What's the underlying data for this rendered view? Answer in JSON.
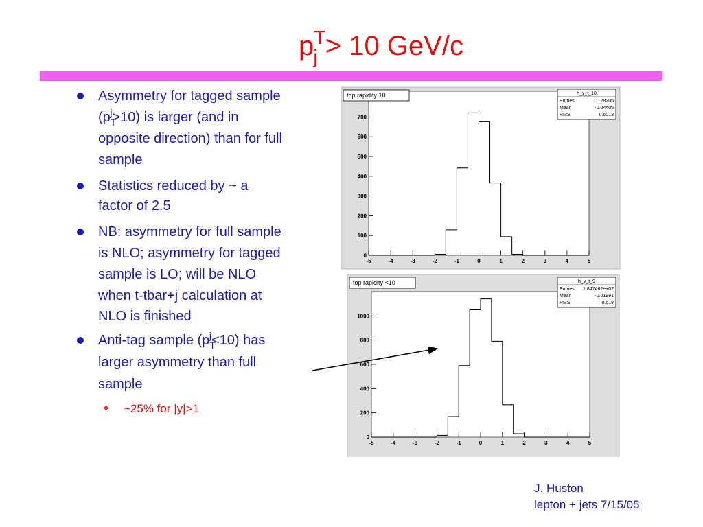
{
  "title": [
    {
      "text": "p"
    },
    {
      "text": "T",
      "script": "sup"
    },
    {
      "text": "j",
      "script": "sub"
    },
    {
      "text": " > 10 GeV/c"
    }
  ],
  "bullets": [
    {
      "lines": [
        [
          {
            "text": "Asymmetry for tagged sample"
          }
        ],
        [
          {
            "text": "(p"
          },
          {
            "text": "T",
            "script": "sub"
          },
          {
            "text": "j",
            "script": "sup"
          },
          {
            "text": ">10) is  larger (and in"
          }
        ],
        [
          {
            "text": "opposite direction) than for full"
          }
        ],
        [
          {
            "text": "sample"
          }
        ]
      ]
    },
    {
      "lines": [
        [
          {
            "text": "Statistics  reduced by ~ a"
          }
        ],
        [
          {
            "text": "factor of 2.5"
          }
        ]
      ]
    },
    {
      "lines": [
        [
          {
            "text": "NB: asymmetry for full sample"
          }
        ],
        [
          {
            "text": "is NLO; asymmetry for tagged"
          }
        ],
        [
          {
            "text": "sample is LO; will be NLO"
          }
        ],
        [
          {
            "text": "when t-tbar+j calculation at"
          }
        ],
        [
          {
            "text": "NLO is finished"
          }
        ]
      ]
    },
    {
      "lines": [
        [
          {
            "text": "Anti-tag sample (p"
          },
          {
            "text": "T",
            "script": "sub"
          },
          {
            "text": "j",
            "script": "sup"
          },
          {
            "text": "<10) has"
          }
        ],
        [
          {
            "text": "larger asymmetry than full"
          }
        ],
        [
          {
            "text": "sample"
          }
        ]
      ],
      "sub_bullets": [
        "~25% for |y|>1"
      ]
    }
  ],
  "footer": [
    "J. Huston",
    "lepton + jets 7/15/05"
  ],
  "chart_data": [
    {
      "type": "histogram",
      "title": "top rapidity 10",
      "stats_name": "h_y_t_10",
      "stats": [
        {
          "label": "Entries",
          "value": "1128205"
        },
        {
          "label": "Mean",
          "value": "-0.04405"
        },
        {
          "label": "RMS",
          "value": "0.6013"
        }
      ],
      "bins": [
        -5,
        -4.5,
        -4,
        -3.5,
        -3,
        -2.5,
        -2,
        -1.5,
        -1,
        -0.5,
        0,
        0.5,
        1,
        1.5,
        2,
        2.5,
        3,
        3.5,
        4,
        4.5,
        5
      ],
      "values": [
        0,
        0,
        0,
        0,
        0,
        0,
        5,
        129,
        442,
        721,
        676,
        366,
        94,
        5,
        0,
        0,
        0,
        0,
        0,
        0
      ],
      "color": "#000000",
      "xlim": [
        -5,
        5
      ],
      "xticks": [
        -5,
        -4,
        -3,
        -2,
        -1,
        0,
        1,
        2,
        3,
        4,
        5
      ],
      "ylim": [
        0,
        830
      ],
      "yticks": [
        0,
        100,
        200,
        300,
        400,
        500,
        600,
        700
      ]
    },
    {
      "type": "histogram",
      "title": "top rapidity <10",
      "stats_name": "h_y_t_9",
      "stats": [
        {
          "label": "Entries",
          "value": "1.847462e+07"
        },
        {
          "label": "Mean",
          "value": "-0.01991"
        },
        {
          "label": "RMS",
          "value": "0.618"
        }
      ],
      "bins": [
        -5,
        -4.5,
        -4,
        -3.5,
        -3,
        -2.5,
        -2,
        -1.5,
        -1,
        -0.5,
        0,
        0.5,
        1,
        1.5,
        2,
        2.5,
        3,
        3.5,
        4,
        4.5,
        5
      ],
      "values": [
        0,
        0,
        0,
        0,
        0,
        0,
        15,
        170,
        590,
        1050,
        1140,
        790,
        267,
        28,
        0,
        0,
        0,
        0,
        0,
        0
      ],
      "color": "#000000",
      "xlim": [
        -5,
        5
      ],
      "xticks": [
        -5,
        -4,
        -3,
        -2,
        -1,
        0,
        1,
        2,
        3,
        4,
        5
      ],
      "ylim": [
        0,
        1200
      ],
      "yticks": [
        0,
        200,
        400,
        600,
        800,
        1000
      ]
    }
  ]
}
